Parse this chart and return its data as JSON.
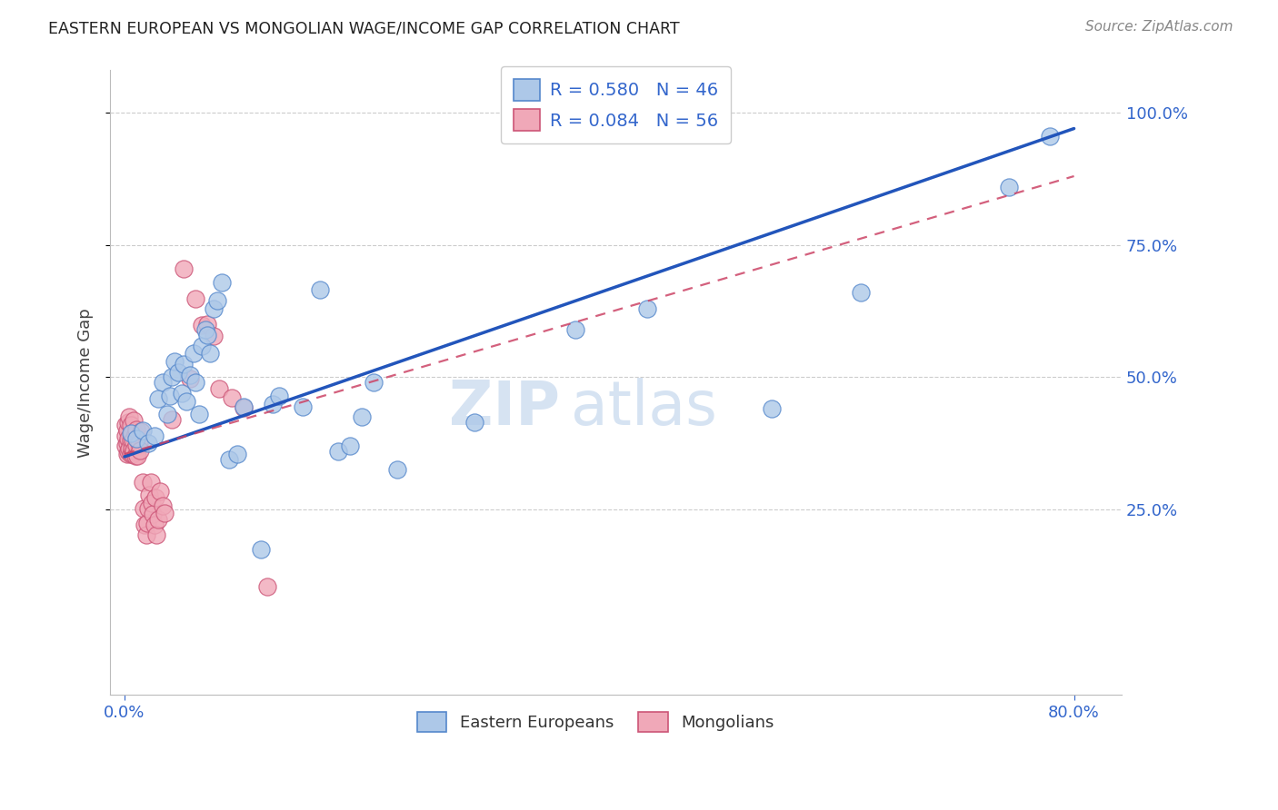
{
  "title": "EASTERN EUROPEAN VS MONGOLIAN WAGE/INCOME GAP CORRELATION CHART",
  "source": "Source: ZipAtlas.com",
  "ylabel_label": "Wage/Income Gap",
  "watermark_zip": "ZIP",
  "watermark_atlas": "atlas",
  "legend_entry1": "R = 0.580   N = 46",
  "legend_entry2": "R = 0.084   N = 56",
  "legend_label1": "Eastern Europeans",
  "legend_label2": "Mongolians",
  "ee_color": "#adc8e8",
  "ee_edge": "#5588cc",
  "mn_color": "#f0a8b8",
  "mn_edge": "#cc5577",
  "blue_line_color": "#2255bb",
  "pink_line_color": "#cc4466",
  "xlim": [
    -0.012,
    0.84
  ],
  "ylim": [
    -0.1,
    1.08
  ],
  "blue_line_x0": 0.0,
  "blue_line_y0": 0.35,
  "blue_line_x1": 0.8,
  "blue_line_y1": 0.97,
  "pink_line_x0": 0.0,
  "pink_line_y0": 0.355,
  "pink_line_x1": 0.8,
  "pink_line_y1": 0.88,
  "ee_points_x": [
    0.005,
    0.01,
    0.015,
    0.02,
    0.025,
    0.028,
    0.032,
    0.036,
    0.038,
    0.04,
    0.042,
    0.045,
    0.048,
    0.05,
    0.052,
    0.055,
    0.058,
    0.06,
    0.063,
    0.065,
    0.068,
    0.07,
    0.072,
    0.075,
    0.078,
    0.082,
    0.088,
    0.095,
    0.1,
    0.115,
    0.125,
    0.13,
    0.15,
    0.165,
    0.18,
    0.19,
    0.2,
    0.21,
    0.23,
    0.295,
    0.38,
    0.44,
    0.545,
    0.62,
    0.745,
    0.78
  ],
  "ee_points_y": [
    0.395,
    0.385,
    0.4,
    0.375,
    0.39,
    0.46,
    0.49,
    0.43,
    0.465,
    0.5,
    0.53,
    0.51,
    0.47,
    0.525,
    0.455,
    0.505,
    0.545,
    0.49,
    0.43,
    0.56,
    0.59,
    0.58,
    0.545,
    0.63,
    0.645,
    0.68,
    0.345,
    0.355,
    0.445,
    0.175,
    0.45,
    0.465,
    0.445,
    0.665,
    0.36,
    0.37,
    0.425,
    0.49,
    0.325,
    0.415,
    0.59,
    0.63,
    0.44,
    0.66,
    0.86,
    0.955
  ],
  "mn_points_x": [
    0.001,
    0.001,
    0.001,
    0.002,
    0.002,
    0.002,
    0.003,
    0.003,
    0.003,
    0.004,
    0.004,
    0.005,
    0.005,
    0.005,
    0.006,
    0.006,
    0.007,
    0.007,
    0.008,
    0.008,
    0.009,
    0.009,
    0.01,
    0.01,
    0.011,
    0.012,
    0.013,
    0.014,
    0.015,
    0.016,
    0.017,
    0.018,
    0.019,
    0.02,
    0.021,
    0.022,
    0.023,
    0.024,
    0.025,
    0.026,
    0.027,
    0.028,
    0.03,
    0.032,
    0.034,
    0.04,
    0.05,
    0.055,
    0.06,
    0.065,
    0.07,
    0.075,
    0.08,
    0.09,
    0.1,
    0.12
  ],
  "mn_points_y": [
    0.37,
    0.39,
    0.41,
    0.355,
    0.375,
    0.4,
    0.36,
    0.385,
    0.415,
    0.365,
    0.425,
    0.355,
    0.38,
    0.41,
    0.365,
    0.395,
    0.355,
    0.38,
    0.362,
    0.418,
    0.352,
    0.392,
    0.372,
    0.402,
    0.352,
    0.375,
    0.362,
    0.398,
    0.302,
    0.252,
    0.222,
    0.202,
    0.224,
    0.252,
    0.278,
    0.302,
    0.262,
    0.242,
    0.222,
    0.272,
    0.202,
    0.232,
    0.285,
    0.258,
    0.244,
    0.42,
    0.705,
    0.498,
    0.648,
    0.598,
    0.6,
    0.578,
    0.478,
    0.462,
    0.442,
    0.105
  ]
}
